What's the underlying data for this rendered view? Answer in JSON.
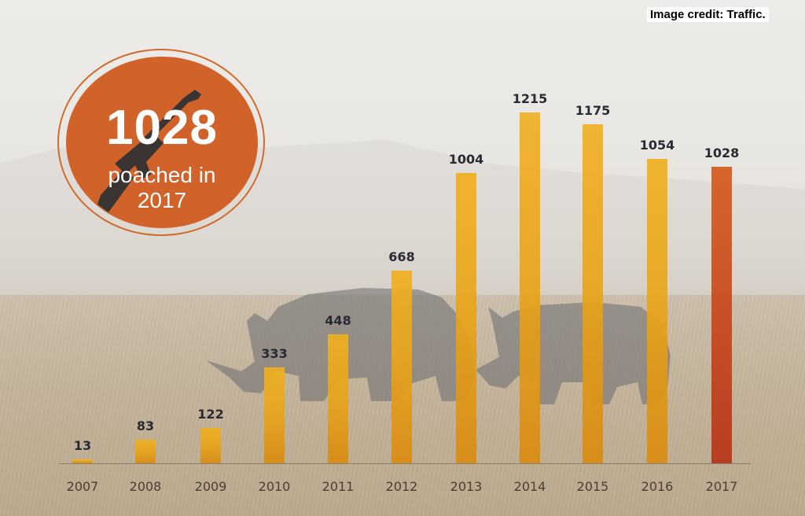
{
  "credit": "Image credit: Traffic.",
  "badge": {
    "number": "1028",
    "line1": "poached in",
    "line2": "2017",
    "icon": "rifle-icon",
    "color": "#d1622a"
  },
  "colors": {
    "bar_default": "#f0b020",
    "bar_highlight": "#d65a1e",
    "value_label": "#2a2a35",
    "year_label": "#4a3e35"
  },
  "chart_data": {
    "type": "bar",
    "title": "",
    "xlabel": "",
    "ylabel": "",
    "categories": [
      "2007",
      "2008",
      "2009",
      "2010",
      "2011",
      "2012",
      "2013",
      "2014",
      "2015",
      "2016",
      "2017"
    ],
    "values": [
      13,
      83,
      122,
      333,
      448,
      668,
      1004,
      1215,
      1175,
      1054,
      1028
    ],
    "highlight": "2017",
    "ylim": [
      0,
      1215
    ],
    "grid": false,
    "legend": null,
    "annotation": "1028 poached in 2017"
  }
}
